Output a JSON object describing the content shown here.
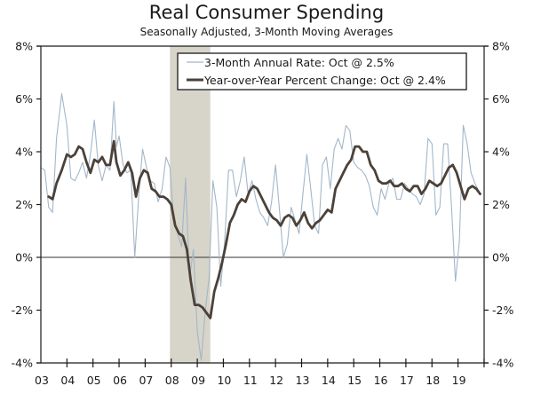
{
  "chart_data": {
    "type": "line",
    "title": "Real Consumer Spending",
    "subtitle": "Seasonally Adjusted, 3-Month Moving Averages",
    "xlabel": "",
    "ylabel": "",
    "xlim": [
      2003.0,
      2019.95
    ],
    "ylim": [
      -4,
      8
    ],
    "x_tick_labels": [
      "03",
      "04",
      "05",
      "06",
      "07",
      "08",
      "09",
      "10",
      "11",
      "12",
      "13",
      "14",
      "15",
      "16",
      "17",
      "18",
      "19"
    ],
    "y_tick_labels": [
      "8%",
      "6%",
      "4%",
      "2%",
      "0%",
      "-2%",
      "-4%"
    ],
    "y_ticks": [
      8,
      6,
      4,
      2,
      0,
      -2,
      -4
    ],
    "grid": false,
    "recession_shading": [
      2007.95,
      2009.5
    ],
    "legend": {
      "placement": "top-center",
      "entries": [
        "3-Month Annual Rate: Oct @ 2.5%",
        "Year-over-Year Percent Change: Oct @ 2.4%"
      ]
    },
    "colors": {
      "three_month": "#a3b7c9",
      "yoy": "#4b4139",
      "shade": "#d7d4c9",
      "axis": "#1a1a1a"
    },
    "series": [
      {
        "name": "3-Month Annual Rate",
        "x": [
          2003.0,
          2003.15,
          2003.3,
          2003.45,
          2003.6,
          2003.8,
          2004.0,
          2004.15,
          2004.3,
          2004.45,
          2004.6,
          2004.75,
          2004.9,
          2005.05,
          2005.2,
          2005.35,
          2005.5,
          2005.65,
          2005.8,
          2005.9,
          2006.0,
          2006.15,
          2006.3,
          2006.45,
          2006.6,
          2006.75,
          2006.9,
          2007.05,
          2007.2,
          2007.35,
          2007.5,
          2007.65,
          2007.8,
          2007.95,
          2008.1,
          2008.25,
          2008.4,
          2008.55,
          2008.7,
          2008.85,
          2009.0,
          2009.15,
          2009.3,
          2009.45,
          2009.6,
          2009.75,
          2009.9,
          2010.05,
          2010.2,
          2010.35,
          2010.5,
          2010.65,
          2010.8,
          2010.95,
          2011.1,
          2011.25,
          2011.4,
          2011.55,
          2011.7,
          2011.85,
          2012.0,
          2012.15,
          2012.3,
          2012.45,
          2012.6,
          2012.75,
          2012.9,
          2013.05,
          2013.2,
          2013.35,
          2013.5,
          2013.65,
          2013.8,
          2013.95,
          2014.1,
          2014.25,
          2014.4,
          2014.55,
          2014.7,
          2014.85,
          2015.0,
          2015.15,
          2015.3,
          2015.45,
          2015.6,
          2015.75,
          2015.9,
          2016.05,
          2016.2,
          2016.35,
          2016.5,
          2016.65,
          2016.8,
          2016.95,
          2017.1,
          2017.25,
          2017.4,
          2017.55,
          2017.7,
          2017.85,
          2018.0,
          2018.15,
          2018.3,
          2018.45,
          2018.6,
          2018.75,
          2018.9,
          2019.05,
          2019.2,
          2019.35,
          2019.5,
          2019.65,
          2019.8
        ],
        "values": [
          3.4,
          3.3,
          1.9,
          1.7,
          4.5,
          6.2,
          5.0,
          3.0,
          2.9,
          3.2,
          3.6,
          3.0,
          3.9,
          5.2,
          3.5,
          2.9,
          3.5,
          3.3,
          5.9,
          4.2,
          4.6,
          3.5,
          3.2,
          3.3,
          0.0,
          2.3,
          4.1,
          3.4,
          2.9,
          2.8,
          2.1,
          2.6,
          3.8,
          3.4,
          1.3,
          0.9,
          0.4,
          3.0,
          -0.8,
          0.3,
          -2.8,
          -3.9,
          -2.1,
          -0.8,
          2.9,
          1.9,
          -1.1,
          0.6,
          3.3,
          3.3,
          2.3,
          2.9,
          3.8,
          2.4,
          2.9,
          2.2,
          1.7,
          1.5,
          1.2,
          2.1,
          3.5,
          1.8,
          0.0,
          0.5,
          1.9,
          1.4,
          0.9,
          2.4,
          3.9,
          2.6,
          1.2,
          0.9,
          3.5,
          3.8,
          2.6,
          4.1,
          4.5,
          4.1,
          5.0,
          4.8,
          3.6,
          3.4,
          3.3,
          3.1,
          2.7,
          1.9,
          1.6,
          2.6,
          2.2,
          2.8,
          3.0,
          2.2,
          2.2,
          2.8,
          2.6,
          2.4,
          2.3,
          2.0,
          2.4,
          4.5,
          4.3,
          1.6,
          1.9,
          4.3,
          4.3,
          1.9,
          -0.9,
          0.6,
          5.0,
          4.3,
          3.2,
          2.8,
          2.5
        ]
      },
      {
        "name": "Year-over-Year Percent Change",
        "x": [
          2003.3,
          2003.45,
          2003.6,
          2003.8,
          2004.0,
          2004.15,
          2004.3,
          2004.45,
          2004.6,
          2004.75,
          2004.9,
          2005.05,
          2005.2,
          2005.35,
          2005.5,
          2005.65,
          2005.8,
          2005.9,
          2006.05,
          2006.2,
          2006.35,
          2006.5,
          2006.65,
          2006.8,
          2006.95,
          2007.1,
          2007.25,
          2007.4,
          2007.55,
          2007.7,
          2007.85,
          2008.0,
          2008.15,
          2008.3,
          2008.45,
          2008.6,
          2008.75,
          2008.9,
          2009.05,
          2009.2,
          2009.35,
          2009.5,
          2009.65,
          2009.8,
          2009.95,
          2010.1,
          2010.25,
          2010.4,
          2010.55,
          2010.7,
          2010.85,
          2011.0,
          2011.15,
          2011.3,
          2011.45,
          2011.6,
          2011.75,
          2011.9,
          2012.05,
          2012.2,
          2012.35,
          2012.5,
          2012.65,
          2012.8,
          2012.95,
          2013.1,
          2013.25,
          2013.4,
          2013.55,
          2013.7,
          2013.85,
          2014.0,
          2014.15,
          2014.3,
          2014.45,
          2014.6,
          2014.75,
          2014.9,
          2015.05,
          2015.2,
          2015.35,
          2015.5,
          2015.65,
          2015.8,
          2015.95,
          2016.1,
          2016.25,
          2016.4,
          2016.55,
          2016.7,
          2016.85,
          2017.0,
          2017.15,
          2017.3,
          2017.45,
          2017.6,
          2017.75,
          2017.9,
          2018.05,
          2018.2,
          2018.35,
          2018.5,
          2018.65,
          2018.8,
          2018.95,
          2019.1,
          2019.25,
          2019.4,
          2019.55,
          2019.7,
          2019.85
        ],
        "values": [
          2.3,
          2.2,
          2.8,
          3.3,
          3.9,
          3.8,
          3.9,
          4.2,
          4.1,
          3.6,
          3.2,
          3.7,
          3.6,
          3.8,
          3.5,
          3.5,
          4.4,
          3.6,
          3.1,
          3.3,
          3.6,
          3.2,
          2.3,
          3.0,
          3.3,
          3.2,
          2.6,
          2.5,
          2.3,
          2.3,
          2.2,
          2.0,
          1.2,
          0.9,
          0.8,
          0.3,
          -0.9,
          -1.8,
          -1.8,
          -1.9,
          -2.1,
          -2.3,
          -1.3,
          -0.8,
          -0.2,
          0.5,
          1.3,
          1.6,
          2.0,
          2.2,
          2.1,
          2.5,
          2.7,
          2.6,
          2.3,
          2.0,
          1.7,
          1.5,
          1.4,
          1.2,
          1.5,
          1.6,
          1.5,
          1.2,
          1.4,
          1.7,
          1.3,
          1.1,
          1.3,
          1.4,
          1.6,
          1.8,
          1.7,
          2.6,
          2.9,
          3.2,
          3.5,
          3.7,
          4.2,
          4.2,
          4.0,
          4.0,
          3.5,
          3.3,
          2.9,
          2.8,
          2.8,
          2.9,
          2.7,
          2.7,
          2.8,
          2.6,
          2.5,
          2.7,
          2.7,
          2.4,
          2.6,
          2.9,
          2.8,
          2.7,
          2.8,
          3.1,
          3.4,
          3.5,
          3.2,
          2.7,
          2.2,
          2.6,
          2.7,
          2.6,
          2.4
        ]
      }
    ]
  }
}
